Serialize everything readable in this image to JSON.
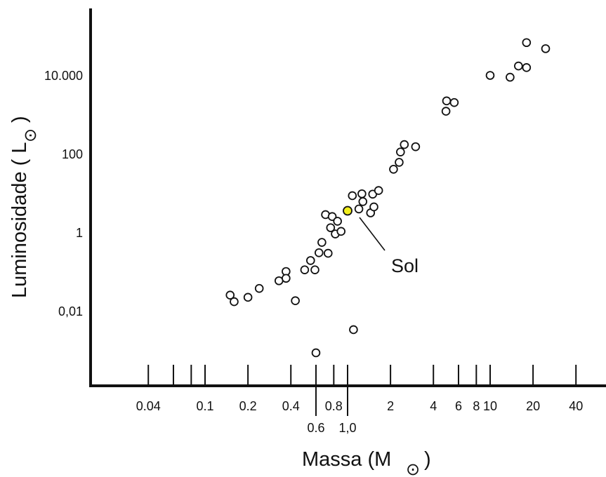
{
  "chart_data": {
    "type": "scatter",
    "title": "",
    "xlabel": "Massa (M",
    "xlabel_close": ")",
    "ylabel": "Luminosidade ( L",
    "ylabel_close": ")",
    "solar_symbol": "⊙",
    "x_scale": "log",
    "y_scale": "log",
    "xlim": [
      0.025,
      55
    ],
    "ylim": [
      3e-05,
      500000
    ],
    "grid": false,
    "x_major_ticks": [
      0.04,
      0.1,
      0.2,
      0.4,
      1,
      4,
      10,
      40
    ],
    "x_minor_ticks": [
      0.06,
      0.08,
      0.6,
      0.8,
      2,
      6,
      8,
      20
    ],
    "x_tick_labels_row1": [
      {
        "x": 0.04,
        "label": "0.04"
      },
      {
        "x": 0.1,
        "label": "0.1"
      },
      {
        "x": 0.2,
        "label": "0.2"
      },
      {
        "x": 0.4,
        "label": "0.4"
      },
      {
        "x": 0.8,
        "label": "0.8"
      },
      {
        "x": 2,
        "label": "2"
      },
      {
        "x": 4,
        "label": "4"
      },
      {
        "x": 6,
        "label": "6"
      },
      {
        "x": 8,
        "label": "8"
      },
      {
        "x": 10,
        "label": "10"
      },
      {
        "x": 20,
        "label": "20"
      },
      {
        "x": 40,
        "label": "40"
      }
    ],
    "x_tick_labels_row2": [
      {
        "x": 0.6,
        "label": "0.6"
      },
      {
        "x": 1,
        "label": "1,0"
      }
    ],
    "y_ticks": [
      {
        "y": 0.01,
        "label": "0,01"
      },
      {
        "y": 1,
        "label": "1"
      },
      {
        "y": 100,
        "label": "100"
      },
      {
        "y": 10000,
        "label": "10.000"
      }
    ],
    "series": [
      {
        "points": [
          {
            "x": 0.15,
            "y": 0.025
          },
          {
            "x": 0.16,
            "y": 0.017
          },
          {
            "x": 0.2,
            "y": 0.022
          },
          {
            "x": 0.24,
            "y": 0.037
          },
          {
            "x": 0.33,
            "y": 0.058
          },
          {
            "x": 0.37,
            "y": 0.1
          },
          {
            "x": 0.37,
            "y": 0.067
          },
          {
            "x": 0.43,
            "y": 0.018
          },
          {
            "x": 0.5,
            "y": 0.11
          },
          {
            "x": 0.55,
            "y": 0.19
          },
          {
            "x": 0.59,
            "y": 0.11
          },
          {
            "x": 0.63,
            "y": 0.3
          },
          {
            "x": 0.66,
            "y": 0.55
          },
          {
            "x": 0.7,
            "y": 2.8
          },
          {
            "x": 0.73,
            "y": 0.29
          },
          {
            "x": 0.76,
            "y": 1.3
          },
          {
            "x": 0.78,
            "y": 2.5
          },
          {
            "x": 0.82,
            "y": 0.9
          },
          {
            "x": 0.85,
            "y": 1.9
          },
          {
            "x": 0.9,
            "y": 1.05
          },
          {
            "x": 1.08,
            "y": 8.5
          },
          {
            "x": 1.2,
            "y": 3.9
          },
          {
            "x": 1.26,
            "y": 9.5
          },
          {
            "x": 1.28,
            "y": 6.0
          },
          {
            "x": 1.45,
            "y": 3.1
          },
          {
            "x": 1.5,
            "y": 9.3
          },
          {
            "x": 1.53,
            "y": 4.4
          },
          {
            "x": 1.65,
            "y": 11.5
          },
          {
            "x": 2.1,
            "y": 40
          },
          {
            "x": 2.3,
            "y": 60
          },
          {
            "x": 2.35,
            "y": 110
          },
          {
            "x": 2.5,
            "y": 170
          },
          {
            "x": 3.0,
            "y": 150
          },
          {
            "x": 4.9,
            "y": 1200
          },
          {
            "x": 4.95,
            "y": 2200
          },
          {
            "x": 5.6,
            "y": 2000
          },
          {
            "x": 10,
            "y": 9800
          },
          {
            "x": 13.8,
            "y": 8800
          },
          {
            "x": 15.8,
            "y": 17000
          },
          {
            "x": 18,
            "y": 15500
          },
          {
            "x": 18,
            "y": 67000
          },
          {
            "x": 24.5,
            "y": 47000
          },
          {
            "x": 0.6,
            "y": 0.00085
          },
          {
            "x": 1.1,
            "y": 0.0033
          }
        ]
      }
    ],
    "highlight": {
      "x": 1.0,
      "y": 3.5,
      "label": "Sol",
      "color": "#f2ef1c"
    },
    "colors": {
      "axis": "#111111",
      "marker_stroke": "#111111",
      "marker_fill": "#ffffff"
    }
  }
}
